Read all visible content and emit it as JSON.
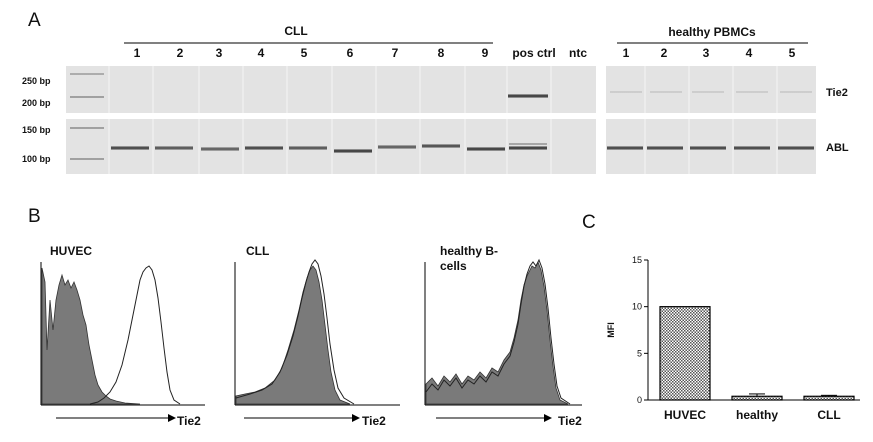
{
  "panels": {
    "a": {
      "letter": "A",
      "cll_header": "CLL",
      "healthy_header": "healthy PBMCs",
      "cll_lanes": [
        "1",
        "2",
        "3",
        "4",
        "5",
        "6",
        "7",
        "8",
        "9"
      ],
      "pos_ctrl": "pos ctrl",
      "ntc": "ntc",
      "healthy_lanes": [
        "1",
        "2",
        "3",
        "4",
        "5"
      ],
      "ladder_top": [
        "250 bp",
        "200 bp"
      ],
      "ladder_bottom": [
        "150 bp",
        "100 bp"
      ],
      "row_top_label": "Tie2",
      "row_bottom_label": "ABL"
    },
    "b": {
      "letter": "B",
      "histograms": [
        {
          "title": "HUVEC",
          "xlabel": "Tie2"
        },
        {
          "title": "CLL",
          "xlabel": "Tie2"
        },
        {
          "title_line1": "healthy B-",
          "title_line2": "cells",
          "xlabel": "Tie2"
        }
      ]
    },
    "c": {
      "letter": "C"
    }
  },
  "colors": {
    "histogram_fill": "#7a7a7a",
    "gel_bg": "#e3e3e3"
  },
  "chart_data": {
    "type": "bar",
    "categories": [
      "HUVEC",
      "healthy",
      "CLL"
    ],
    "values": [
      10,
      0.4,
      0.4
    ],
    "errors": [
      0,
      0.25,
      0.1
    ],
    "ylabel": "MFI",
    "ylim": [
      0,
      15
    ],
    "yticks": [
      "0",
      "5",
      "10",
      "15"
    ]
  }
}
